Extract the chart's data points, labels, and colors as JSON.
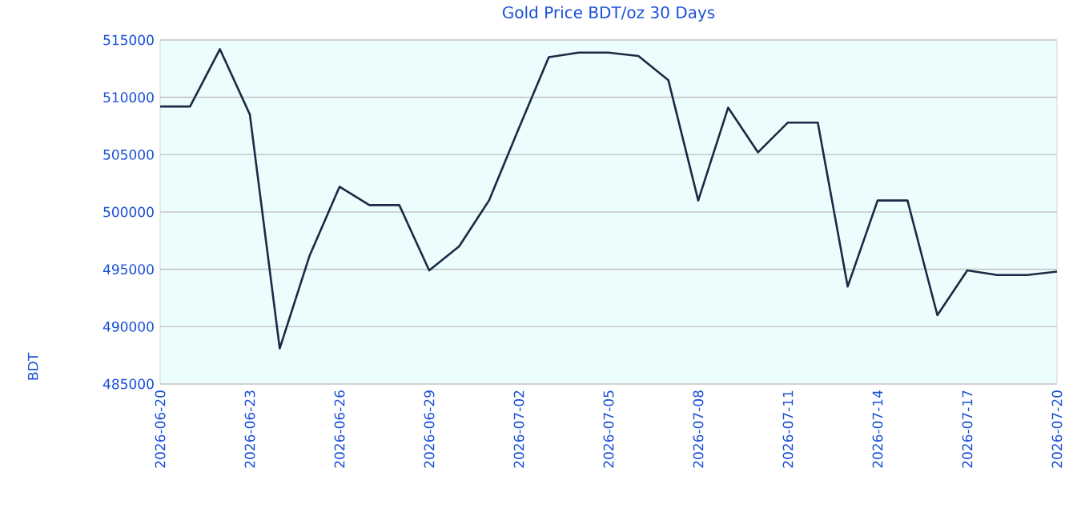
{
  "chart_data": {
    "type": "line",
    "title": "Gold Price BDT/oz 30 Days",
    "ylabel": "BDT",
    "x": [
      "2026-06-20",
      "2026-06-21",
      "2026-06-22",
      "2026-06-23",
      "2026-06-24",
      "2026-06-25",
      "2026-06-26",
      "2026-06-27",
      "2026-06-28",
      "2026-06-29",
      "2026-06-30",
      "2026-07-01",
      "2026-07-02",
      "2026-07-03",
      "2026-07-04",
      "2026-07-05",
      "2026-07-06",
      "2026-07-07",
      "2026-07-08",
      "2026-07-09",
      "2026-07-10",
      "2026-07-11",
      "2026-07-12",
      "2026-07-13",
      "2026-07-14",
      "2026-07-15",
      "2026-07-16",
      "2026-07-17",
      "2026-07-18",
      "2026-07-19",
      "2026-07-20"
    ],
    "series": [
      {
        "color": "#1a2a44",
        "values": [
          509200,
          509200,
          514200,
          508500,
          488100,
          496200,
          502200,
          500600,
          500600,
          494900,
          497000,
          501000,
          507300,
          513500,
          513900,
          513900,
          513600,
          511500,
          501000,
          509100,
          505200,
          507800,
          507800,
          493500,
          501000,
          501000,
          491000,
          494900,
          494500,
          494500,
          494800
        ]
      }
    ],
    "xlim": [
      "2026-06-20",
      "2026-07-20"
    ],
    "xticks": [
      "2026-06-20",
      "2026-06-23",
      "2026-06-26",
      "2026-06-29",
      "2026-07-02",
      "2026-07-05",
      "2026-07-08",
      "2026-07-11",
      "2026-07-14",
      "2026-07-17",
      "2026-07-20"
    ],
    "ylim": [
      485000,
      515000
    ],
    "yticks": [
      485000,
      490000,
      495000,
      500000,
      505000,
      510000,
      515000
    ],
    "grid": "y",
    "marker": "none",
    "line_style": "solid"
  }
}
